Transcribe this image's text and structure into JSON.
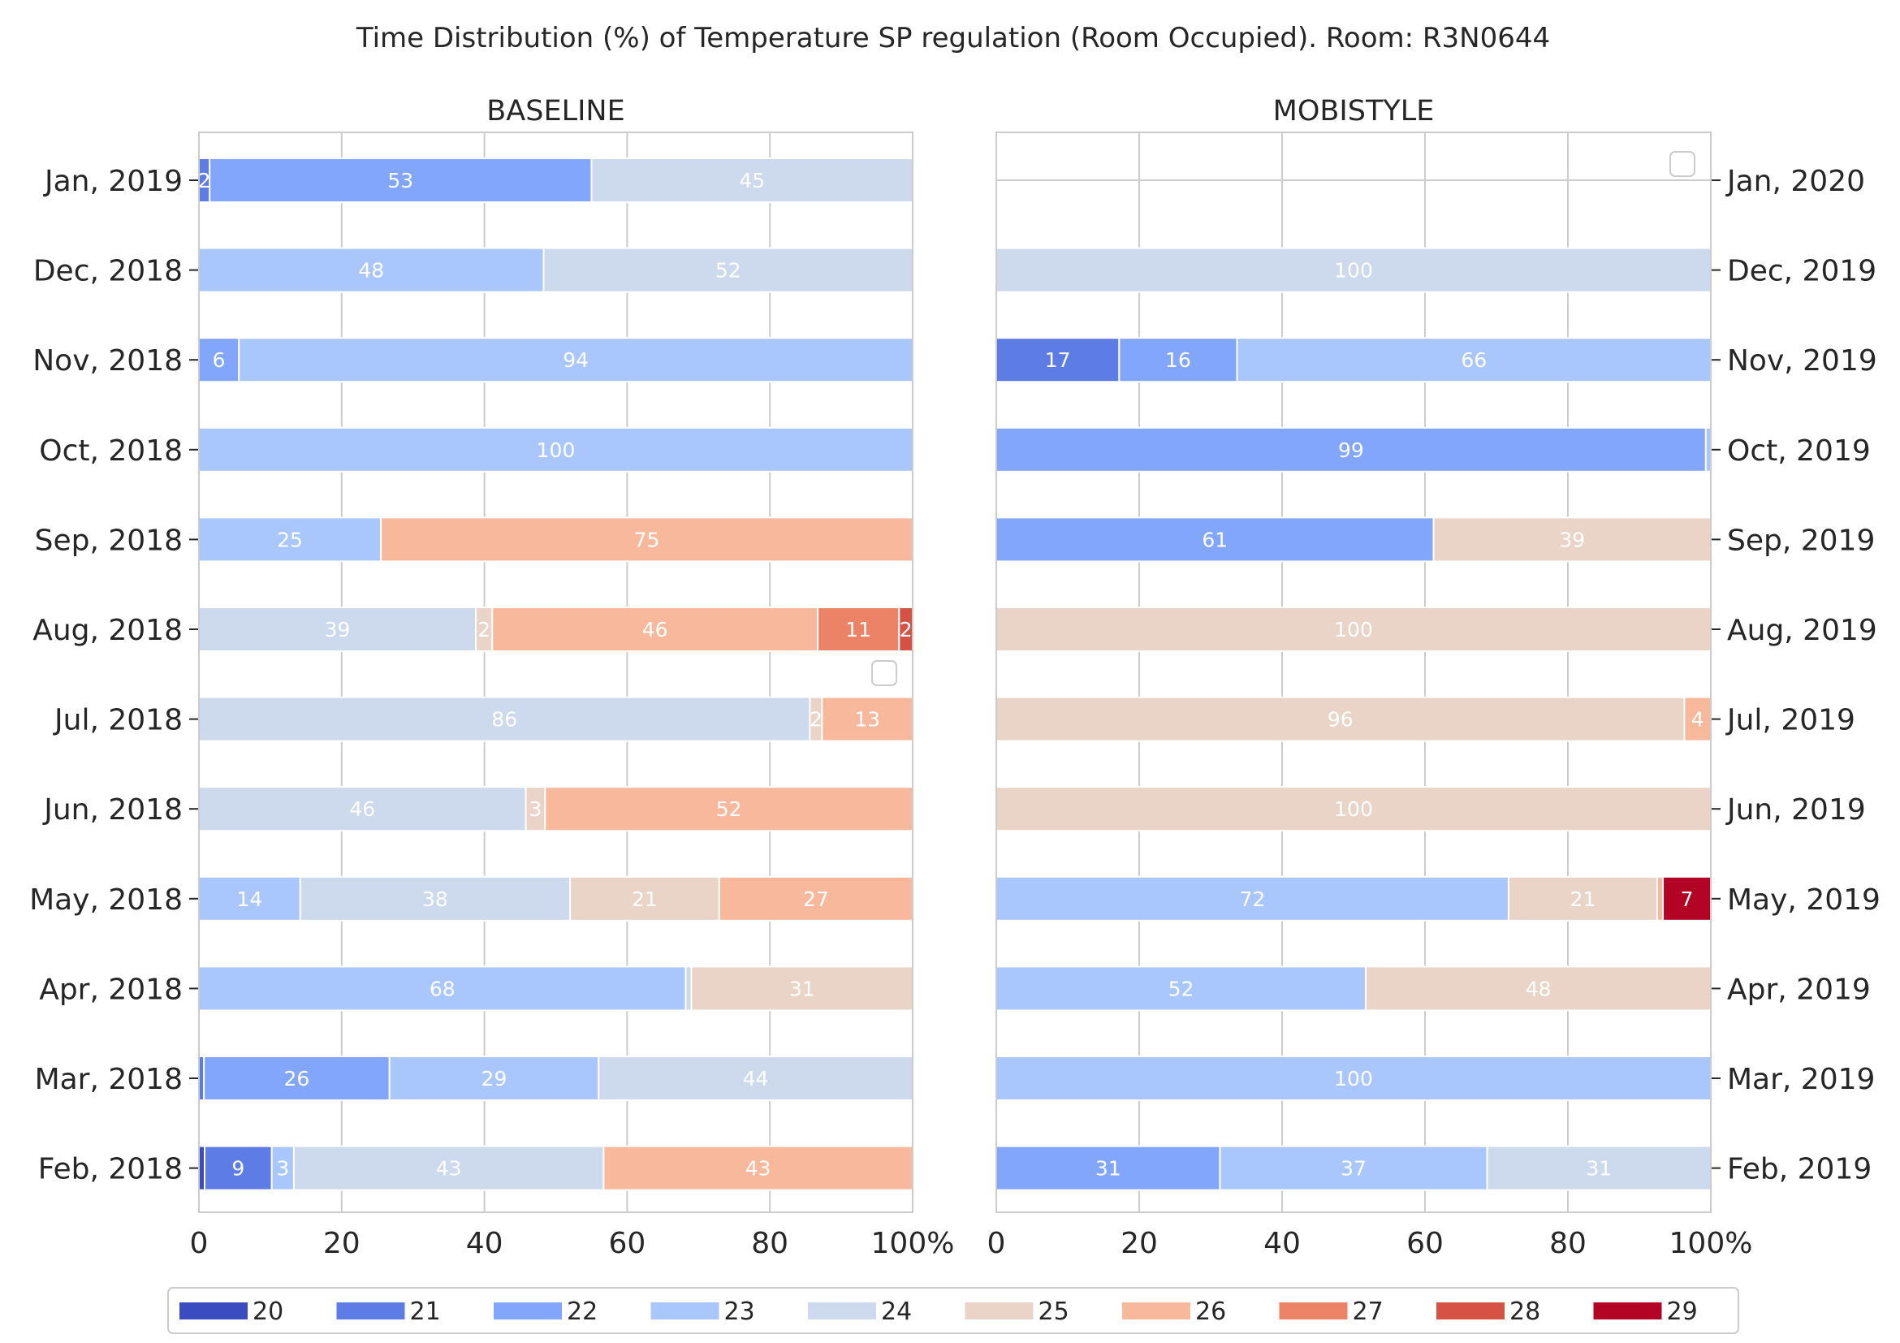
{
  "chart_data": {
    "type": "bar",
    "orientation": "horizontal",
    "stacked": true,
    "title": "Time Distribution (%) of Temperature SP regulation (Room Occupied). Room: R3N0644",
    "xlim": [
      0,
      100
    ],
    "x_ticks": [
      "0",
      "20",
      "40",
      "60",
      "80",
      "100%"
    ],
    "grid": true,
    "legend_position": "bottom",
    "legend": [
      "20",
      "21",
      "22",
      "23",
      "24",
      "25",
      "26",
      "27",
      "28",
      "29"
    ],
    "colors": [
      "#3b4cc0",
      "#5d7ce6",
      "#82a6fb",
      "#aac7fd",
      "#cdd9ec",
      "#ead4c8",
      "#f7b89c",
      "#ed8366",
      "#d65244",
      "#b40426"
    ],
    "panels": [
      {
        "title": "BASELINE",
        "categories": [
          "Jan, 2019",
          "Dec, 2018",
          "Nov, 2018",
          "Oct, 2018",
          "Sep, 2018",
          "Aug, 2018",
          "Jul, 2018",
          "Jun, 2018",
          "May, 2018",
          "Apr, 2018",
          "Mar, 2018",
          "Feb, 2018"
        ],
        "values": [
          [
            0,
            1.5,
            53.5,
            0,
            45,
            0,
            0,
            0,
            0,
            0
          ],
          [
            0,
            0,
            0,
            48.3,
            51.7,
            0,
            0,
            0,
            0,
            0
          ],
          [
            0,
            0,
            5.6,
            94.4,
            0,
            0,
            0,
            0,
            0,
            0
          ],
          [
            0,
            0,
            0,
            100,
            0,
            0,
            0,
            0,
            0,
            0
          ],
          [
            0,
            0,
            0,
            25.5,
            0,
            0,
            74.5,
            0,
            0,
            0
          ],
          [
            0,
            0,
            0,
            0,
            38.8,
            2.3,
            45.6,
            11.4,
            1.9,
            0
          ],
          [
            0,
            0,
            0,
            0,
            85.6,
            1.7,
            12.7,
            0,
            0,
            0
          ],
          [
            0,
            0,
            0,
            0,
            45.8,
            2.7,
            51.5,
            0,
            0,
            0
          ],
          [
            0,
            0,
            0,
            14.2,
            37.8,
            20.9,
            27.1,
            0,
            0,
            0
          ],
          [
            0,
            0,
            0,
            68.2,
            0.8,
            31,
            0,
            0,
            0,
            0
          ],
          [
            0,
            0.7,
            26,
            29.3,
            44,
            0,
            0,
            0,
            0,
            0
          ],
          [
            0.8,
            9.4,
            0,
            3.1,
            43.4,
            0,
            43.3,
            0,
            0,
            0
          ]
        ],
        "labels": [
          [
            "",
            "2",
            "53",
            "",
            "45",
            "",
            "",
            "",
            "",
            ""
          ],
          [
            "",
            "",
            "",
            "48",
            "52",
            "",
            "",
            "",
            "",
            ""
          ],
          [
            "",
            "",
            "6",
            "94",
            "",
            "",
            "",
            "",
            "",
            ""
          ],
          [
            "",
            "",
            "",
            "100",
            "",
            "",
            "",
            "",
            "",
            ""
          ],
          [
            "",
            "",
            "",
            "25",
            "",
            "",
            "75",
            "",
            "",
            ""
          ],
          [
            "",
            "",
            "",
            "",
            "39",
            "2",
            "46",
            "11",
            "2",
            ""
          ],
          [
            "",
            "",
            "",
            "",
            "86",
            "2",
            "13",
            "",
            "",
            ""
          ],
          [
            "",
            "",
            "",
            "",
            "46",
            "3",
            "52",
            "",
            "",
            ""
          ],
          [
            "",
            "",
            "",
            "14",
            "38",
            "21",
            "27",
            "",
            "",
            ""
          ],
          [
            "",
            "",
            "",
            "68",
            "",
            "31",
            "",
            "",
            "",
            ""
          ],
          [
            "",
            "",
            "26",
            "29",
            "44",
            "",
            "",
            "",
            "",
            ""
          ],
          [
            "",
            "9",
            "",
            "3",
            "43",
            "",
            "43",
            "",
            "",
            ""
          ]
        ]
      },
      {
        "title": "MOBISTYLE",
        "categories": [
          "Jan, 2020",
          "Dec, 2019",
          "Nov, 2019",
          "Oct, 2019",
          "Sep, 2019",
          "Aug, 2019",
          "Jul, 2019",
          "Jun, 2019",
          "May, 2019",
          "Apr, 2019",
          "Mar, 2019",
          "Feb, 2019"
        ],
        "values": [
          [
            0,
            0,
            0,
            0,
            0,
            0,
            0,
            0,
            0,
            0
          ],
          [
            0,
            0,
            0,
            0,
            100,
            0,
            0,
            0,
            0,
            0
          ],
          [
            0,
            17.2,
            16.5,
            66.3,
            0,
            0,
            0,
            0,
            0,
            0
          ],
          [
            0,
            0,
            99.3,
            0.7,
            0,
            0,
            0,
            0,
            0,
            0
          ],
          [
            0,
            0,
            61.2,
            0,
            0,
            38.8,
            0,
            0,
            0,
            0
          ],
          [
            0,
            0,
            0,
            0,
            0,
            100,
            0,
            0,
            0,
            0
          ],
          [
            0,
            0,
            0,
            0,
            0,
            96.3,
            3.7,
            0,
            0,
            0
          ],
          [
            0,
            0,
            0,
            0,
            0,
            100,
            0,
            0,
            0,
            0
          ],
          [
            0,
            0,
            0,
            71.7,
            0,
            20.8,
            0.8,
            0,
            0,
            6.7
          ],
          [
            0,
            0,
            0,
            51.7,
            0,
            48.3,
            0,
            0,
            0,
            0
          ],
          [
            0,
            0,
            0,
            100,
            0,
            0,
            0,
            0,
            0,
            0
          ],
          [
            0,
            0,
            31.3,
            37.4,
            31.3,
            0,
            0,
            0,
            0,
            0
          ]
        ],
        "labels": [
          [
            "",
            "",
            "",
            "",
            "",
            "",
            "",
            "",
            "",
            ""
          ],
          [
            "",
            "",
            "",
            "",
            "100",
            "",
            "",
            "",
            "",
            ""
          ],
          [
            "",
            "17",
            "16",
            "66",
            "",
            "",
            "",
            "",
            "",
            ""
          ],
          [
            "",
            "",
            "99",
            "",
            "",
            "",
            "",
            "",
            "",
            ""
          ],
          [
            "",
            "",
            "61",
            "",
            "",
            "39",
            "",
            "",
            "",
            ""
          ],
          [
            "",
            "",
            "",
            "",
            "",
            "100",
            "",
            "",
            "",
            ""
          ],
          [
            "",
            "",
            "",
            "",
            "",
            "96",
            "4",
            "",
            "",
            ""
          ],
          [
            "",
            "",
            "",
            "",
            "",
            "100",
            "",
            "",
            "",
            ""
          ],
          [
            "",
            "",
            "",
            "72",
            "",
            "21",
            "",
            "",
            "",
            "7"
          ],
          [
            "",
            "",
            "",
            "52",
            "",
            "48",
            "",
            "",
            "",
            ""
          ],
          [
            "",
            "",
            "",
            "100",
            "",
            "",
            "",
            "",
            "",
            ""
          ],
          [
            "",
            "",
            "31",
            "37",
            "31",
            "",
            "",
            "",
            "",
            ""
          ]
        ]
      }
    ]
  }
}
